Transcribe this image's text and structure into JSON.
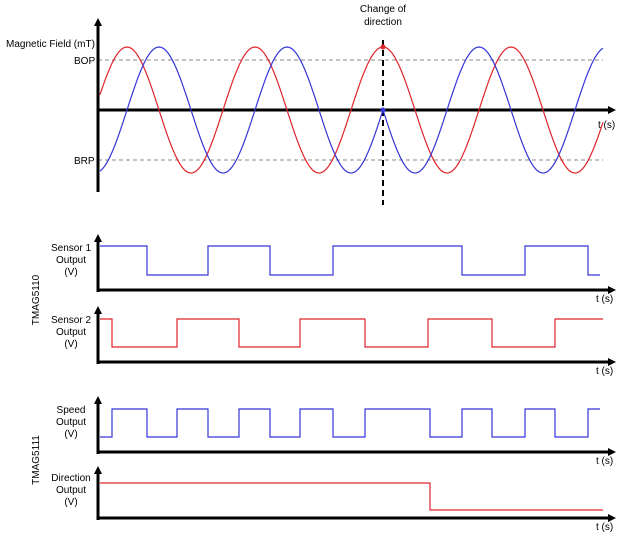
{
  "top_plot": {
    "annotation": [
      "Change of",
      "direction"
    ],
    "y_axis_label": "Magnetic Field (mT)",
    "thresholds": [
      "BOP",
      "BRP"
    ],
    "x_axis_label": "t (s)"
  },
  "groups": [
    "TMAG5110",
    "TMAG5111"
  ],
  "panels": [
    {
      "label": [
        "Sensor 1",
        "Output",
        "(V)"
      ],
      "x_axis_label": "t (s)"
    },
    {
      "label": [
        "Sensor 2",
        "Output",
        "(V)"
      ],
      "x_axis_label": "t (s)"
    },
    {
      "label": [
        "Speed",
        "Output",
        "(V)"
      ],
      "x_axis_label": "t (s)"
    },
    {
      "label": [
        "Direction",
        "Output",
        "(V)"
      ],
      "x_axis_label": "t (s)"
    }
  ]
}
